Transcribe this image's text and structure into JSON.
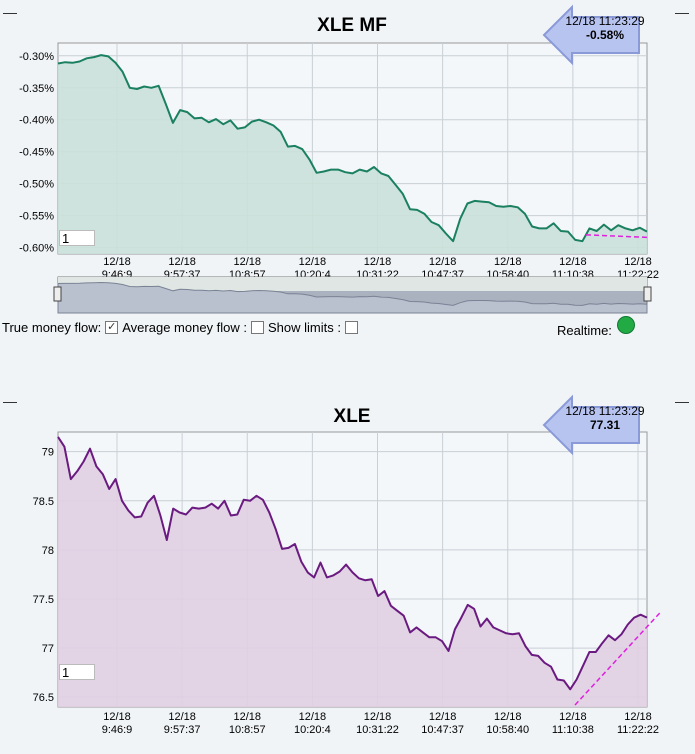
{
  "chart_data": [
    {
      "type": "area",
      "title": "XLE MF",
      "tag": {
        "time": "12/18 11:23:29",
        "value": "-0.58%"
      },
      "zoom_value": "1",
      "ylim": [
        -0.61,
        -0.28
      ],
      "yticks": [
        -0.3,
        -0.35,
        -0.4,
        -0.45,
        -0.5,
        -0.55,
        -0.6
      ],
      "ytick_labels": [
        "-0.30%",
        "-0.35%",
        "-0.40%",
        "-0.45%",
        "-0.50%",
        "-0.55%",
        "-0.60%"
      ],
      "xtick_dates": [
        "12/18",
        "12/18",
        "12/18",
        "12/18",
        "12/18",
        "12/18",
        "12/18",
        "12/18",
        "12/18"
      ],
      "xtick_times": [
        "9:46:9",
        "9:57:37",
        "10:8:57",
        "10:20:4",
        "10:31:22",
        "10:47:37",
        "10:58:40",
        "11:10:38",
        "11:22:22"
      ],
      "series": [
        {
          "values": [
            -0.312,
            -0.31,
            -0.311,
            -0.309,
            -0.304,
            -0.302,
            -0.299,
            -0.301,
            -0.311,
            -0.325,
            -0.35,
            -0.352,
            -0.348,
            -0.35,
            -0.347,
            -0.375,
            -0.405,
            -0.385,
            -0.388,
            -0.398,
            -0.397,
            -0.404,
            -0.399,
            -0.407,
            -0.401,
            -0.414,
            -0.412,
            -0.403,
            -0.4,
            -0.404,
            -0.409,
            -0.419,
            -0.442,
            -0.441,
            -0.446,
            -0.462,
            -0.483,
            -0.481,
            -0.478,
            -0.478,
            -0.482,
            -0.484,
            -0.478,
            -0.481,
            -0.474,
            -0.484,
            -0.488,
            -0.502,
            -0.516,
            -0.54,
            -0.541,
            -0.547,
            -0.56,
            -0.565,
            -0.578,
            -0.59,
            -0.555,
            -0.531,
            -0.527,
            -0.528,
            -0.529,
            -0.535,
            -0.536,
            -0.535,
            -0.537,
            -0.547,
            -0.567,
            -0.57,
            -0.57,
            -0.562,
            -0.574,
            -0.575,
            -0.588,
            -0.59,
            -0.57,
            -0.574,
            -0.564,
            -0.573,
            -0.565,
            -0.57,
            -0.573,
            -0.569,
            -0.575
          ]
        }
      ],
      "trend": {
        "from": -0.58,
        "to": -0.584
      }
    },
    {
      "type": "area",
      "title": "XLE",
      "tag": {
        "time": "12/18 11:23:29",
        "value": "77.31"
      },
      "zoom_value": "1",
      "ylim": [
        76.4,
        79.2
      ],
      "yticks": [
        79,
        78.5,
        78,
        77.5,
        77,
        76.5
      ],
      "ytick_labels": [
        "79",
        "78.5",
        "78",
        "77.5",
        "77",
        "76.5"
      ],
      "xtick_dates": [
        "12/18",
        "12/18",
        "12/18",
        "12/18",
        "12/18",
        "12/18",
        "12/18",
        "12/18",
        "12/18"
      ],
      "xtick_times": [
        "9:46:9",
        "9:57:37",
        "10:8:57",
        "10:20:4",
        "10:31:22",
        "10:47:37",
        "10:58:40",
        "11:10:38",
        "11:22:22"
      ],
      "series": [
        {
          "values": [
            79.15,
            79.05,
            78.72,
            78.8,
            78.9,
            79.03,
            78.85,
            78.77,
            78.62,
            78.72,
            78.5,
            78.4,
            78.33,
            78.34,
            78.48,
            78.55,
            78.35,
            78.1,
            78.42,
            78.38,
            78.36,
            78.43,
            78.42,
            78.43,
            78.47,
            78.42,
            78.5,
            78.35,
            78.36,
            78.51,
            78.5,
            78.55,
            78.51,
            78.38,
            78.21,
            78.01,
            78.02,
            78.06,
            77.88,
            77.77,
            77.72,
            77.87,
            77.72,
            77.74,
            77.78,
            77.85,
            77.77,
            77.71,
            77.69,
            77.7,
            77.53,
            77.58,
            77.43,
            77.38,
            77.33,
            77.16,
            77.21,
            77.16,
            77.11,
            77.11,
            77.07,
            76.97,
            77.19,
            77.31,
            77.44,
            77.4,
            77.22,
            77.3,
            77.21,
            77.18,
            77.15,
            77.14,
            77.15,
            77.02,
            76.93,
            76.92,
            76.85,
            76.81,
            76.68,
            76.67,
            76.58,
            76.68,
            76.82,
            76.96,
            76.96,
            77.05,
            77.13,
            77.08,
            77.14,
            77.24,
            77.31,
            77.34,
            77.31
          ]
        }
      ],
      "trend": {
        "from": 76.42,
        "to": 77.36
      }
    }
  ],
  "controls": {
    "true_money_flow_label": "True money flow:",
    "average_money_flow_label": "Average money flow :",
    "show_limits_label": "Show limits :",
    "realtime_label": "Realtime:"
  },
  "colors": {
    "mf_line": "#1a8060",
    "mf_fill": "#cbe0da",
    "price_line": "#6a1a80",
    "price_fill": "#e0cfe2",
    "trend": "#e020e0",
    "realtime_dot": "#22aa44"
  }
}
